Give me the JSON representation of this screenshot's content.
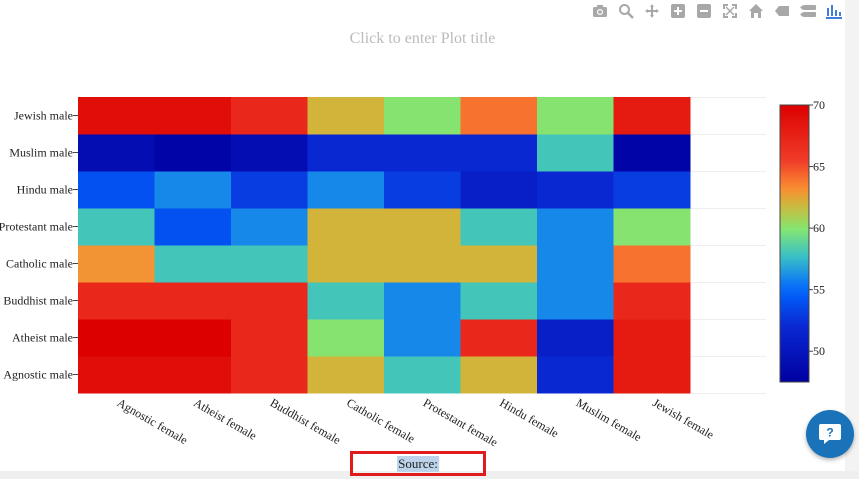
{
  "modebar": {
    "icons": [
      "camera-icon",
      "zoom-icon",
      "pan-icon",
      "zoom-in-icon",
      "zoom-out-icon",
      "autoscale-icon",
      "home-icon",
      "spike-lines-icon",
      "compare-icon",
      "plotly-logo-icon"
    ]
  },
  "plot_title_placeholder": "Click to enter Plot title",
  "source_label": "Source:",
  "colors": {
    "help_button": "#1a73b8",
    "source_border": "#e01b1b"
  },
  "chart_data": {
    "type": "heatmap",
    "title": "",
    "x_labels": [
      "Agnostic female",
      "Atheist female",
      "Buddhist female",
      "Catholic female",
      "Protestant female",
      "Hindu female",
      "Muslim female",
      "Jewish female"
    ],
    "y_labels": [
      "Agnostic male",
      "Atheist male",
      "Buddhist male",
      "Catholic male",
      "Protestant male",
      "Hindu male",
      "Muslim male",
      "Jewish male"
    ],
    "z": [
      [
        69,
        69,
        67,
        62,
        58,
        62,
        52,
        68
      ],
      [
        70,
        70,
        67,
        60,
        56,
        67,
        51,
        68
      ],
      [
        67,
        67,
        67,
        58,
        56,
        58,
        56,
        67
      ],
      [
        63,
        58,
        58,
        62,
        62,
        62,
        56,
        64
      ],
      [
        58,
        54,
        56,
        62,
        62,
        58,
        56,
        60
      ],
      [
        54,
        56,
        53,
        56,
        53,
        51,
        52,
        53
      ],
      [
        49,
        48,
        49,
        52,
        52,
        52,
        58,
        48
      ],
      [
        69,
        69,
        67,
        62,
        60,
        64,
        60,
        68
      ]
    ],
    "zmin": 47.5,
    "zmax": 70,
    "colorbar_ticks": [
      50,
      55,
      60,
      65,
      70
    ],
    "colorscale": "jet"
  }
}
